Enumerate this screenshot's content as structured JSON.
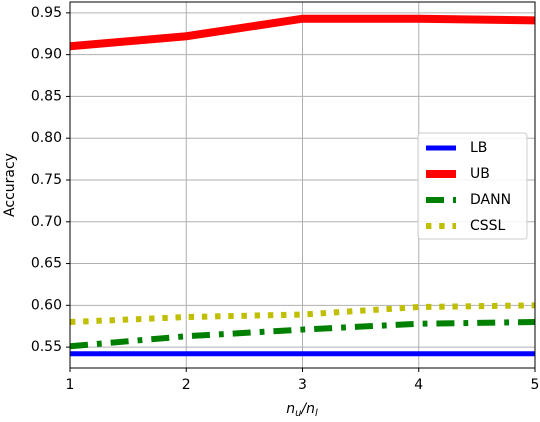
{
  "chart_data": {
    "type": "line",
    "x_label": [
      "n",
      "u",
      "/",
      "n",
      "l"
    ],
    "y_label": "Accuracy",
    "x": [
      1,
      2,
      3,
      4,
      5
    ],
    "series": [
      {
        "name": "LB",
        "color": "#0000ff",
        "linewidth": 5,
        "linestyle": "solid",
        "values": [
          0.542,
          0.542,
          0.542,
          0.542,
          0.542
        ]
      },
      {
        "name": "UB",
        "color": "#ff0000",
        "linewidth": 8,
        "linestyle": "solid",
        "values": [
          0.91,
          0.922,
          0.943,
          0.943,
          0.941
        ]
      },
      {
        "name": "DANN",
        "color": "#008000",
        "linewidth": 6,
        "linestyle": "dashdot",
        "values": [
          0.551,
          0.563,
          0.571,
          0.578,
          0.58
        ]
      },
      {
        "name": "CSSL",
        "color": "#bfbf00",
        "linewidth": 6,
        "linestyle": "dotted",
        "values": [
          0.58,
          0.586,
          0.589,
          0.598,
          0.6
        ]
      }
    ],
    "xlim": [
      1,
      5
    ],
    "ylim": [
      0.525,
      0.963
    ],
    "xticks": [
      1,
      2,
      3,
      4,
      5
    ],
    "yticks": [
      0.55,
      {
        "value": 0.6,
        "label": "0.60"
      },
      0.65,
      {
        "value": 0.7,
        "label": "0.70"
      },
      0.75,
      {
        "value": 0.8,
        "label": "0.80"
      },
      0.85,
      {
        "value": 0.9,
        "label": "0.90"
      },
      0.95
    ],
    "grid": true,
    "legend": "right"
  }
}
